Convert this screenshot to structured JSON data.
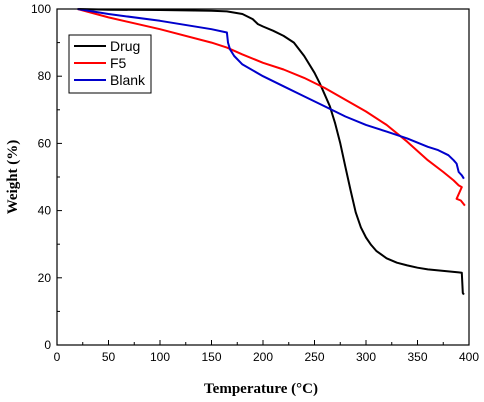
{
  "chart_data": {
    "type": "line",
    "title": "",
    "xlabel": "Temperature (°C)",
    "ylabel": "Weight (%)",
    "xlim": [
      0,
      400
    ],
    "ylim": [
      0,
      100
    ],
    "xticks": [
      0,
      50,
      100,
      150,
      200,
      250,
      300,
      350,
      400
    ],
    "yticks": [
      0,
      20,
      40,
      60,
      80,
      100
    ],
    "grid": false,
    "legend_position": "top-left",
    "series": [
      {
        "name": "Drug",
        "color": "#000000",
        "x": [
          20,
          50,
          100,
          150,
          165,
          180,
          190,
          195,
          200,
          210,
          220,
          230,
          240,
          250,
          255,
          260,
          265,
          270,
          275,
          280,
          285,
          290,
          295,
          300,
          305,
          310,
          320,
          330,
          340,
          350,
          360,
          370,
          380,
          390,
          393,
          394,
          395
        ],
        "y": [
          100,
          99.8,
          99.7,
          99.5,
          99.3,
          98.5,
          97,
          95.5,
          94.8,
          93.5,
          92,
          90,
          86,
          81,
          78,
          74.5,
          71,
          66,
          60,
          53,
          46,
          39.5,
          35,
          32,
          29.8,
          28,
          25.8,
          24.5,
          23.7,
          23,
          22.5,
          22.2,
          21.9,
          21.6,
          21.5,
          15.5,
          15
        ]
      },
      {
        "name": "F5",
        "color": "#ff0000",
        "x": [
          20,
          50,
          100,
          150,
          165,
          180,
          200,
          220,
          240,
          260,
          280,
          300,
          320,
          340,
          360,
          375,
          385,
          390,
          393,
          388,
          392,
          396
        ],
        "y": [
          100,
          97.5,
          94,
          90,
          88.5,
          86.5,
          84,
          82,
          79.5,
          76.5,
          73,
          69.5,
          65.5,
          60.5,
          55,
          51.5,
          49,
          47.5,
          47,
          43.5,
          43,
          41.5
        ]
      },
      {
        "name": "Blank",
        "color": "#0000cc",
        "x": [
          20,
          50,
          100,
          150,
          165,
          166,
          168,
          172,
          180,
          200,
          220,
          240,
          260,
          280,
          300,
          320,
          340,
          360,
          370,
          380,
          385,
          388,
          390,
          393,
          395
        ],
        "y": [
          100,
          98.5,
          96.5,
          94,
          93,
          90,
          88,
          86,
          83.5,
          80,
          77,
          74,
          71,
          68,
          65.5,
          63.5,
          61.5,
          59,
          58,
          56.5,
          55,
          54,
          51.5,
          50.5,
          49.5
        ]
      }
    ]
  }
}
